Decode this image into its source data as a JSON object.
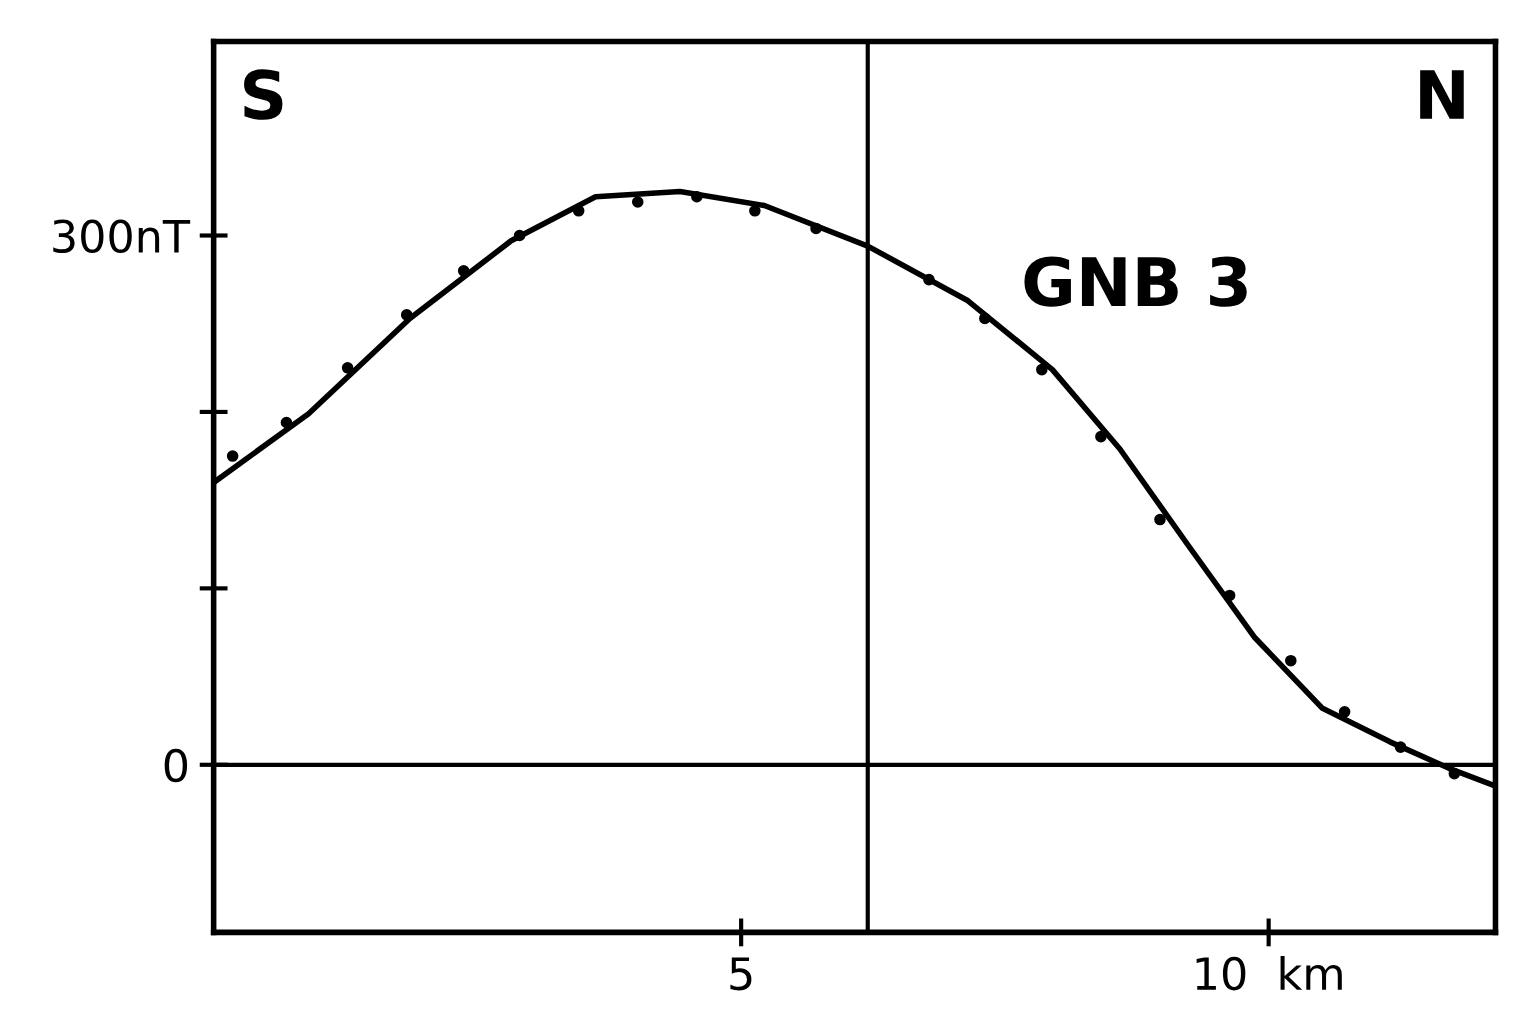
{
  "chart_data": {
    "type": "line",
    "xlim": [
      0,
      12.15
    ],
    "ylim": [
      -95,
      410
    ],
    "xticks": [
      {
        "value": 5,
        "label": "5"
      },
      {
        "value": 10,
        "label": "10  km"
      }
    ],
    "yticks": [
      {
        "value": 0,
        "label": "0"
      },
      {
        "value": 100,
        "label": null
      },
      {
        "value": 200,
        "label": null
      },
      {
        "value": 300,
        "label": "300nT"
      }
    ],
    "grid": false,
    "legend": false,
    "ref_lines": [
      {
        "axis": "y",
        "value": 0,
        "color": "#000000"
      },
      {
        "axis": "x",
        "value": 6.2,
        "color": "#000000"
      }
    ],
    "annotations": [
      "S",
      "N",
      "GNB 3"
    ],
    "series": [
      {
        "color": "#000000",
        "line_style": "solid",
        "x": [
          0,
          0.9,
          1.86,
          2.82,
          3.62,
          4.42,
          5.22,
          6.2,
          7.15,
          7.95,
          8.59,
          9.23,
          9.87,
          10.51,
          11.15,
          11.71,
          12.15
        ],
        "values": [
          160,
          199,
          253,
          297,
          322,
          325,
          317,
          294,
          263,
          224,
          179,
          125,
          72,
          32,
          13,
          -2,
          -12
        ]
      },
      {
        "type": "scatter",
        "color": "#000000",
        "marker": "circle",
        "x": [
          0.18,
          0.69,
          1.27,
          1.83,
          2.37,
          2.9,
          3.46,
          4.02,
          4.58,
          5.13,
          5.71,
          6.78,
          7.31,
          7.85,
          8.41,
          8.97,
          9.63,
          10.21,
          10.72,
          11.25,
          11.76
        ],
        "values": [
          175,
          194,
          225,
          255,
          280,
          300,
          314,
          319,
          322,
          314,
          304,
          275,
          253,
          224,
          186,
          139,
          96,
          59,
          30,
          10,
          -5
        ]
      }
    ]
  }
}
